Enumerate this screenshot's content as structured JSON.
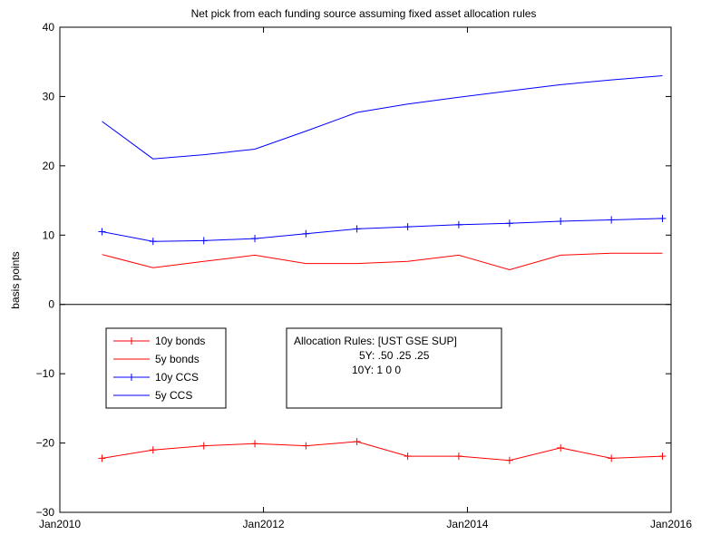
{
  "chart_data": {
    "type": "line",
    "title": "Net pick from each funding source assuming fixed asset allocation rules",
    "xlabel": "",
    "ylabel": "basis points",
    "ylim": [
      -30,
      40
    ],
    "yticks": [
      -30,
      -20,
      -10,
      0,
      10,
      20,
      30,
      40
    ],
    "xlim": [
      "2010-01-01",
      "2016-01-01"
    ],
    "xticks": [
      {
        "date": "2010-01-01",
        "label": "Jan2010"
      },
      {
        "date": "2012-01-01",
        "label": "Jan2012"
      },
      {
        "date": "2014-01-01",
        "label": "Jan2014"
      },
      {
        "date": "2016-01-01",
        "label": "Jan2016"
      }
    ],
    "grid": false,
    "zero_line": true,
    "x": [
      "2010-06-01",
      "2010-12-01",
      "2011-06-01",
      "2011-12-01",
      "2012-06-01",
      "2012-12-01",
      "2013-06-01",
      "2013-12-01",
      "2014-06-01",
      "2014-12-01",
      "2015-06-01",
      "2015-12-01"
    ],
    "series": [
      {
        "name": "10y bonds",
        "color": "#ff0000",
        "marker": "+",
        "values": [
          -22.2,
          -21.0,
          -20.4,
          -20.1,
          -20.4,
          -19.8,
          -21.9,
          -21.9,
          -22.5,
          -20.7,
          -22.2,
          -21.9
        ]
      },
      {
        "name": "5y bonds",
        "color": "#ff0000",
        "marker": "none",
        "values": [
          7.2,
          5.3,
          6.2,
          7.1,
          5.9,
          5.9,
          6.2,
          7.1,
          5.0,
          7.1,
          7.4,
          7.4
        ]
      },
      {
        "name": "10y CCS",
        "color": "#0000ff",
        "marker": "+",
        "values": [
          10.5,
          9.1,
          9.2,
          9.5,
          10.2,
          10.9,
          11.2,
          11.5,
          11.7,
          12.0,
          12.2,
          12.4
        ]
      },
      {
        "name": "5y CCS",
        "color": "#0000ff",
        "marker": "none",
        "values": [
          26.4,
          21.0,
          21.6,
          22.4,
          25.0,
          27.7,
          28.9,
          29.9,
          30.8,
          31.7,
          32.4,
          33.0
        ]
      }
    ],
    "legend": {
      "placement": "lower-left"
    },
    "annotation": {
      "lines": [
        "Allocation Rules: [UST GSE SUP]",
        "5Y:  .50   .25   .25",
        "10Y:   1     0     0"
      ]
    }
  }
}
